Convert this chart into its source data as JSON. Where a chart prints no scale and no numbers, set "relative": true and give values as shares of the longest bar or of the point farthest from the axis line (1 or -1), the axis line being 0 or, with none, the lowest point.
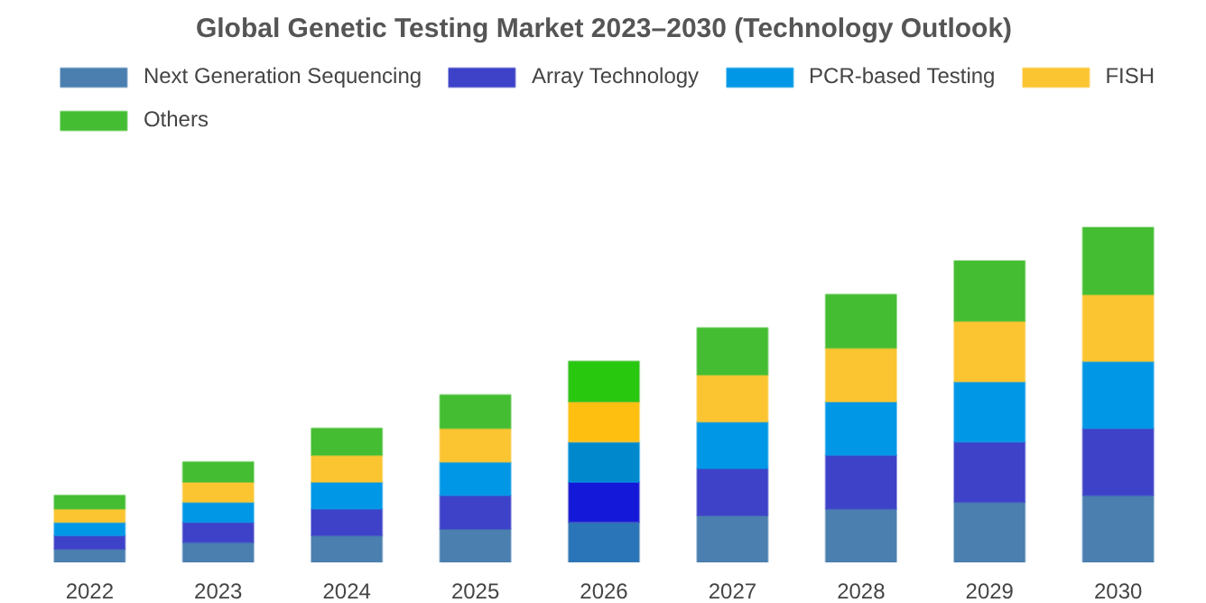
{
  "chart_data": {
    "type": "bar",
    "title": "Global Genetic Testing Market 2023–2030 (Technology Outlook)",
    "categories": [
      "2022",
      "2023",
      "2024",
      "2025",
      "2026",
      "2027",
      "2028",
      "2029",
      "2030"
    ],
    "stacked": true,
    "relative": true,
    "grid": false,
    "legend": "top",
    "series": [
      {
        "name": "Next Generation Sequencing",
        "color": "#4a7fb0",
        "colors": [
          "#4a7fb0",
          "#4a7fb0",
          "#4a7fb0",
          "#4a7fb0",
          "#2a74b8",
          "#4a7fb0",
          "#4a7fb0",
          "#4a7fb0",
          "#4a7fb0"
        ],
        "values": [
          0.04,
          0.06,
          0.08,
          0.1,
          0.12,
          0.14,
          0.16,
          0.18,
          0.2
        ]
      },
      {
        "name": "Array Technology",
        "color": "#3d42c8",
        "colors": [
          "#3d42c8",
          "#3d42c8",
          "#3d42c8",
          "#3d42c8",
          "#1418d8",
          "#3d42c8",
          "#3d42c8",
          "#3d42c8",
          "#3d42c8"
        ],
        "values": [
          0.04,
          0.06,
          0.08,
          0.1,
          0.12,
          0.14,
          0.16,
          0.18,
          0.2
        ]
      },
      {
        "name": "PCR-based Testing",
        "color": "#0097e6",
        "colors": [
          "#0097e6",
          "#0097e6",
          "#0097e6",
          "#0097e6",
          "#0088cc",
          "#0097e6",
          "#0097e6",
          "#0097e6",
          "#0097e6"
        ],
        "values": [
          0.04,
          0.06,
          0.08,
          0.1,
          0.12,
          0.14,
          0.16,
          0.18,
          0.2
        ]
      },
      {
        "name": "FISH",
        "color": "#fbc531",
        "colors": [
          "#fbc531",
          "#fbc531",
          "#fbc531",
          "#fbc531",
          "#ffbf10",
          "#fbc531",
          "#fbc531",
          "#fbc531",
          "#fbc531"
        ],
        "values": [
          0.04,
          0.06,
          0.08,
          0.1,
          0.12,
          0.14,
          0.16,
          0.18,
          0.2
        ]
      },
      {
        "name": "Others",
        "color": "#44bd32",
        "colors": [
          "#44bd32",
          "#44bd32",
          "#44bd32",
          "#44bd32",
          "#28c80e",
          "#44bd32",
          "#44bd32",
          "#44bd32",
          "#44bd32"
        ],
        "values": [
          0.04,
          0.06,
          0.08,
          0.1,
          0.12,
          0.14,
          0.16,
          0.18,
          0.2
        ]
      }
    ]
  }
}
